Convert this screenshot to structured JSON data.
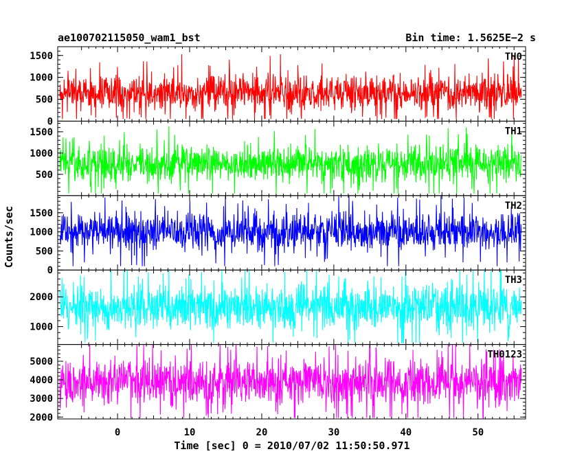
{
  "chart_data": {
    "type": "line",
    "title": "ae100702115050_wam1_bst",
    "bin_time_label": "Bin time: 1.5625E−2 s",
    "xlabel": "Time [sec] 0 = 2010/07/02 11:50:50.971",
    "ylabel": "Counts/sec",
    "xlim": [
      -8.3,
      56.6
    ],
    "x_data_range": [
      -8.0,
      56.0
    ],
    "x_ticks": [
      0,
      10,
      20,
      30,
      40,
      50
    ],
    "x_tick_labels": [
      "0",
      "10",
      "20",
      "30",
      "40",
      "50"
    ],
    "grid": false,
    "legend": "none",
    "panels": [
      {
        "name": "TH0",
        "color": "#ff0000",
        "ylim": [
          0,
          1700
        ],
        "y_ticks": [
          0,
          500,
          1000,
          1500
        ],
        "y_tick_labels": [
          "0",
          "500",
          "1000",
          "1500"
        ],
        "mean": 650,
        "typical_range": [
          150,
          1250
        ],
        "extreme_range": [
          50,
          1700
        ]
      },
      {
        "name": "TH1",
        "color": "#00ff00",
        "ylim": [
          0,
          1750
        ],
        "y_ticks": [
          500,
          1000,
          1500
        ],
        "y_tick_labels": [
          "500",
          "1000",
          "1500"
        ],
        "mean": 750,
        "typical_range": [
          200,
          1300
        ],
        "extreme_range": [
          50,
          1700
        ]
      },
      {
        "name": "TH2",
        "color": "#0000ff",
        "ylim": [
          0,
          1950
        ],
        "y_ticks": [
          0,
          500,
          1000,
          1500
        ],
        "y_tick_labels": [
          "0",
          "500",
          "1000",
          "1500"
        ],
        "mean": 1000,
        "typical_range": [
          350,
          1650
        ],
        "extreme_range": [
          100,
          1950
        ]
      },
      {
        "name": "TH3",
        "color": "#00ffff",
        "ylim": [
          400,
          2900
        ],
        "y_ticks": [
          1000,
          2000
        ],
        "y_tick_labels": [
          "1000",
          "2000"
        ],
        "mean": 1650,
        "typical_range": [
          700,
          2600
        ],
        "extreme_range": [
          450,
          2900
        ]
      },
      {
        "name": "TH0123",
        "color": "#ff00ff",
        "ylim": [
          1900,
          5900
        ],
        "y_ticks": [
          2000,
          3000,
          4000,
          5000
        ],
        "y_tick_labels": [
          "2000",
          "3000",
          "4000",
          "5000"
        ],
        "mean": 3900,
        "typical_range": [
          2300,
          5500
        ],
        "extreme_range": [
          1950,
          5900
        ]
      }
    ]
  }
}
